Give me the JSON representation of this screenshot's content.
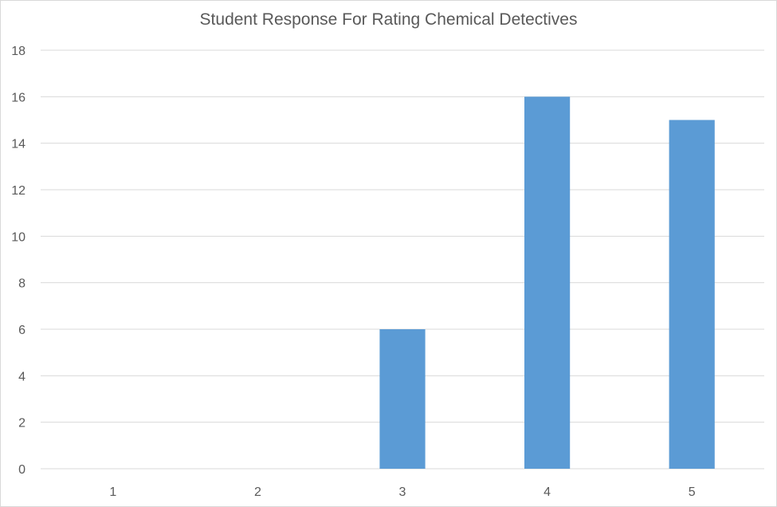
{
  "chart_data": {
    "type": "bar",
    "title": "Student Response For Rating Chemical Detectives",
    "categories": [
      "1",
      "2",
      "3",
      "4",
      "5"
    ],
    "values": [
      0,
      0,
      6,
      16,
      15
    ],
    "xlabel": "",
    "ylabel": "",
    "ylim": [
      0,
      18
    ],
    "yticks": [
      0,
      2,
      4,
      6,
      8,
      10,
      12,
      14,
      16,
      18
    ],
    "grid": true,
    "legend": "none",
    "colors": {
      "bar": "#5b9bd5",
      "grid": "#d9d9d9",
      "axis": "#d9d9d9",
      "text": "#595959"
    }
  }
}
